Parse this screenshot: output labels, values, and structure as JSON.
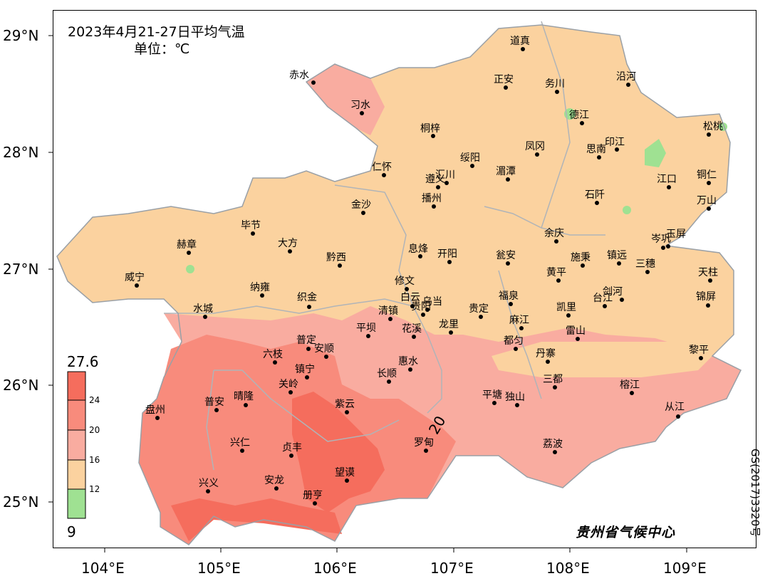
{
  "title": "2023年4月21-27日平均气温",
  "unit": "单位：℃",
  "credit": "贵州省气候中心",
  "map_number": "GS(2017)3320号",
  "lat_labels": [
    "29°N",
    "28°N",
    "27°N",
    "26°N",
    "25°N"
  ],
  "lon_labels": [
    "104°E",
    "105°E",
    "106°E",
    "107°E",
    "108°E",
    "109°E"
  ],
  "legend": {
    "max_label": "27.6",
    "min_label": "9",
    "breaks": [
      "24",
      "20",
      "16",
      "12"
    ],
    "colors": {
      "above24": "#f56d5d",
      "20to24": "#f88b7c",
      "16to20": "#f9aca0",
      "12to16": "#fbd29f",
      "below12": "#9fe192"
    }
  },
  "contour_label": "20",
  "cities": [
    {
      "name": "道真"
    },
    {
      "name": "赤水"
    },
    {
      "name": "正安"
    },
    {
      "name": "务川"
    },
    {
      "name": "沿河"
    },
    {
      "name": "习水"
    },
    {
      "name": "德江"
    },
    {
      "name": "松桃"
    },
    {
      "name": "桐梓"
    },
    {
      "name": "凤冈"
    },
    {
      "name": "印江"
    },
    {
      "name": "思南"
    },
    {
      "name": "仁怀"
    },
    {
      "name": "绥阳"
    },
    {
      "name": "湄潭"
    },
    {
      "name": "遵义"
    },
    {
      "name": "汇川"
    },
    {
      "name": "江口"
    },
    {
      "name": "铜仁"
    },
    {
      "name": "金沙"
    },
    {
      "name": "播州"
    },
    {
      "name": "石阡"
    },
    {
      "name": "万山"
    },
    {
      "name": "毕节"
    },
    {
      "name": "余庆"
    },
    {
      "name": "岑巩"
    },
    {
      "name": "玉屏"
    },
    {
      "name": "赫章"
    },
    {
      "name": "大方"
    },
    {
      "name": "息烽"
    },
    {
      "name": "开阳"
    },
    {
      "name": "瓮安"
    },
    {
      "name": "施秉"
    },
    {
      "name": "镇远"
    },
    {
      "name": "三穗"
    },
    {
      "name": "威宁"
    },
    {
      "name": "黔西"
    },
    {
      "name": "修文"
    },
    {
      "name": "黄平"
    },
    {
      "name": "天柱"
    },
    {
      "name": "纳雍"
    },
    {
      "name": "白云"
    },
    {
      "name": "织金"
    },
    {
      "name": "乌当"
    },
    {
      "name": "福泉"
    },
    {
      "name": "剑河"
    },
    {
      "name": "锦屏"
    },
    {
      "name": "水城"
    },
    {
      "name": "清镇"
    },
    {
      "name": "贵阳"
    },
    {
      "name": "贵定"
    },
    {
      "name": "凯里"
    },
    {
      "name": "台江"
    },
    {
      "name": "麻江"
    },
    {
      "name": "花溪"
    },
    {
      "name": "平坝"
    },
    {
      "name": "龙里"
    },
    {
      "name": "雷山"
    },
    {
      "name": "普定"
    },
    {
      "name": "都匀"
    },
    {
      "name": "安顺"
    },
    {
      "name": "六枝"
    },
    {
      "name": "丹寨"
    },
    {
      "name": "黎平"
    },
    {
      "name": "惠水"
    },
    {
      "name": "镇宁"
    },
    {
      "name": "长顺"
    },
    {
      "name": "三都"
    },
    {
      "name": "关岭"
    },
    {
      "name": "榕江"
    },
    {
      "name": "普安"
    },
    {
      "name": "晴隆"
    },
    {
      "name": "平塘"
    },
    {
      "name": "独山"
    },
    {
      "name": "盘州"
    },
    {
      "name": "紫云"
    },
    {
      "name": "从江"
    },
    {
      "name": "兴仁"
    },
    {
      "name": "贞丰"
    },
    {
      "name": "罗甸"
    },
    {
      "name": "荔波"
    },
    {
      "name": "望谟"
    },
    {
      "name": "安龙"
    },
    {
      "name": "兴义"
    },
    {
      "name": "册亨"
    }
  ]
}
